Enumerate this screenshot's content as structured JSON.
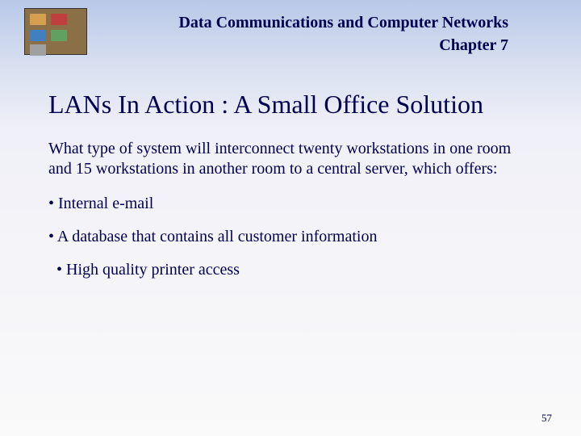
{
  "header": {
    "title_line1": "Data Communications and Computer Networks",
    "title_line2": "Chapter 7"
  },
  "slide": {
    "title": "LANs In Action : A Small Office Solution",
    "intro": "What type of system will interconnect twenty workstations in one room and 15 workstations in another room to a central server, which offers:",
    "bullets": [
      "• Internal e-mail",
      "• A database that contains all customer information",
      "•  High quality printer access"
    ]
  },
  "page_number": "57",
  "colors": {
    "text": "#000050",
    "bg_top": "#b8c8e8",
    "bg_bottom": "#fafafa"
  },
  "typography": {
    "header_fontsize": 20,
    "title_fontsize": 32,
    "body_fontsize": 20,
    "pagenum_fontsize": 13,
    "font_family": "Times New Roman"
  }
}
